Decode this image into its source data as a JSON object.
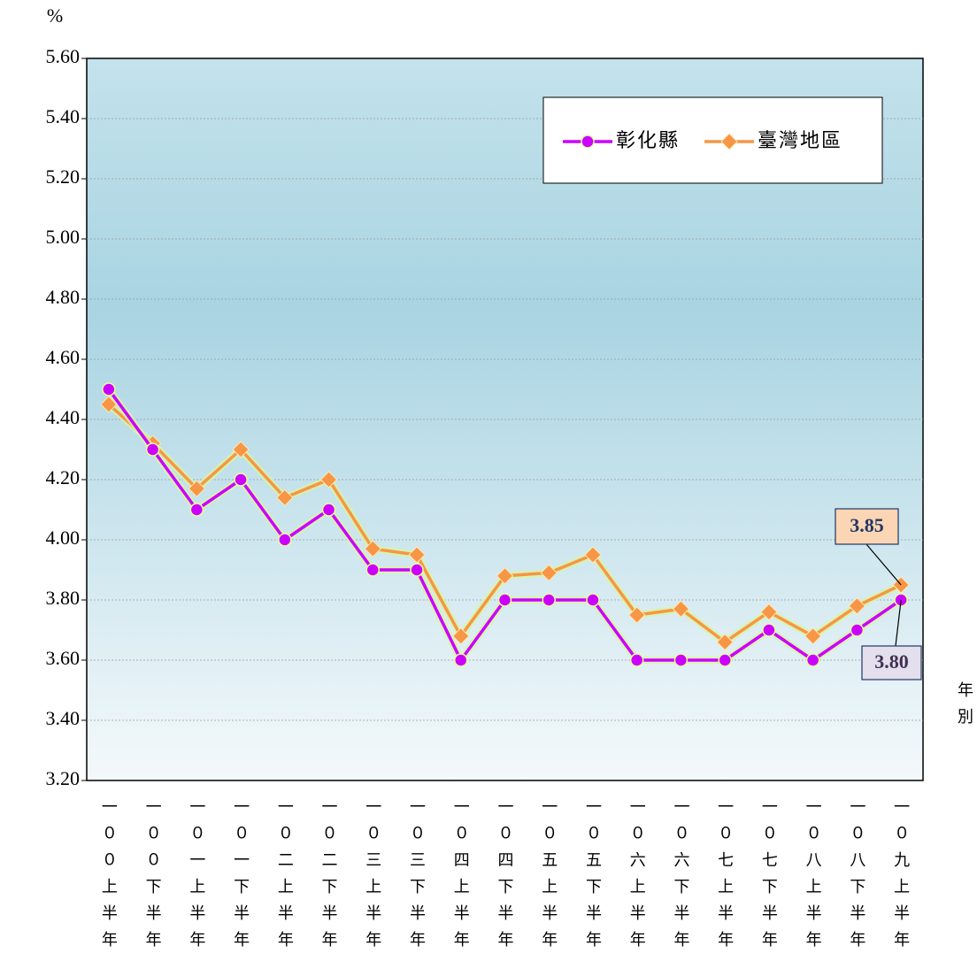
{
  "chart_data": {
    "type": "line",
    "y_label": "%",
    "x_label": "年別",
    "categories": [
      "一００上半年",
      "一００下半年",
      "一０一上半年",
      "一０一下半年",
      "一０二上半年",
      "一０二下半年",
      "一０三上半年",
      "一０三下半年",
      "一０四上半年",
      "一０四下半年",
      "一０五上半年",
      "一０五下半年",
      "一０六上半年",
      "一０六下半年",
      "一０七上半年",
      "一０七下半年",
      "一０八上半年",
      "一０八下半年",
      "一０九上半年"
    ],
    "series": [
      {
        "name": "彰化縣",
        "color": "#cc00ff",
        "marker": "circle",
        "values": [
          4.5,
          4.3,
          4.1,
          4.2,
          4.0,
          4.1,
          3.9,
          3.9,
          3.6,
          3.8,
          3.8,
          3.8,
          3.6,
          3.6,
          3.6,
          3.7,
          3.6,
          3.7,
          3.8
        ],
        "value_labels": [
          null,
          null,
          null,
          null,
          null,
          null,
          null,
          null,
          null,
          null,
          null,
          null,
          null,
          null,
          null,
          null,
          null,
          null,
          "3.80"
        ]
      },
      {
        "name": "臺灣地區",
        "color": "#f79646",
        "marker": "diamond",
        "values": [
          4.45,
          4.32,
          4.17,
          4.3,
          4.14,
          4.2,
          3.97,
          3.95,
          3.68,
          3.88,
          3.89,
          3.95,
          3.75,
          3.77,
          3.66,
          3.76,
          3.68,
          3.78,
          3.85
        ],
        "value_labels": [
          null,
          null,
          null,
          null,
          null,
          null,
          null,
          null,
          null,
          null,
          null,
          null,
          null,
          null,
          null,
          null,
          null,
          null,
          "3.85"
        ]
      }
    ],
    "ylim": [
      3.2,
      5.6
    ],
    "yticks": [
      {
        "value": 3.2,
        "label": "3.20"
      },
      {
        "value": 3.4,
        "label": "3.40"
      },
      {
        "value": 3.6,
        "label": "3.60"
      },
      {
        "value": 3.8,
        "label": "3.80"
      },
      {
        "value": 4.0,
        "label": "4.00"
      },
      {
        "value": 4.2,
        "label": "4.20"
      },
      {
        "value": 4.4,
        "label": "4.40"
      },
      {
        "value": 4.6,
        "label": "4.60"
      },
      {
        "value": 4.8,
        "label": "4.80"
      },
      {
        "value": 5.0,
        "label": "5.00"
      },
      {
        "value": 5.2,
        "label": "5.20"
      },
      {
        "value": 5.4,
        "label": "5.40"
      },
      {
        "value": 5.6,
        "label": "5.60"
      }
    ],
    "grid": true,
    "legend": "top-right"
  }
}
